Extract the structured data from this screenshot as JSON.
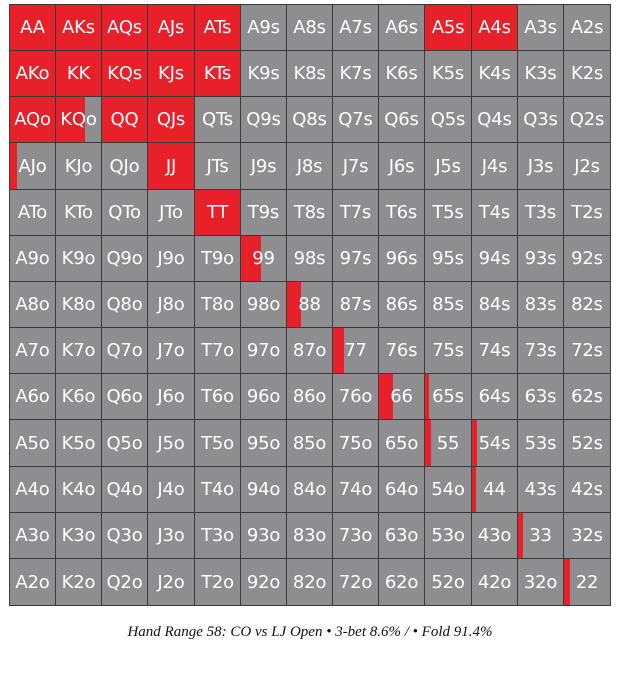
{
  "caption": "Hand Range 58: CO vs LJ Open • 3-bet 8.6% / • Fold 91.4%",
  "colors": {
    "raise": "#e8202a",
    "fold": "#8e8e90",
    "border": "#3a3a3a",
    "text": "#ffffff"
  },
  "chart_data": {
    "type": "heatmap",
    "title": "Hand Range 58: CO vs LJ Open • 3-bet 8.6% / • Fold 91.4%",
    "series": [
      {
        "name": "3-bet",
        "color": "#e8202a"
      },
      {
        "name": "Fold",
        "color": "#8e8e90"
      }
    ],
    "rows": [
      [
        "AA",
        "AKs",
        "AQs",
        "AJs",
        "ATs",
        "A9s",
        "A8s",
        "A7s",
        "A6s",
        "A5s",
        "A4s",
        "A3s",
        "A2s"
      ],
      [
        "AKo",
        "KK",
        "KQs",
        "KJs",
        "KTs",
        "K9s",
        "K8s",
        "K7s",
        "K6s",
        "K5s",
        "K4s",
        "K3s",
        "K2s"
      ],
      [
        "AQo",
        "KQo",
        "QQ",
        "QJs",
        "QTs",
        "Q9s",
        "Q8s",
        "Q7s",
        "Q6s",
        "Q5s",
        "Q4s",
        "Q3s",
        "Q2s"
      ],
      [
        "AJo",
        "KJo",
        "QJo",
        "JJ",
        "JTs",
        "J9s",
        "J8s",
        "J7s",
        "J6s",
        "J5s",
        "J4s",
        "J3s",
        "J2s"
      ],
      [
        "ATo",
        "KTo",
        "QTo",
        "JTo",
        "TT",
        "T9s",
        "T8s",
        "T7s",
        "T6s",
        "T5s",
        "T4s",
        "T3s",
        "T2s"
      ],
      [
        "A9o",
        "K9o",
        "Q9o",
        "J9o",
        "T9o",
        "99",
        "98s",
        "97s",
        "96s",
        "95s",
        "94s",
        "93s",
        "92s"
      ],
      [
        "A8o",
        "K8o",
        "Q8o",
        "J8o",
        "T8o",
        "98o",
        "88",
        "87s",
        "86s",
        "85s",
        "84s",
        "83s",
        "82s"
      ],
      [
        "A7o",
        "K7o",
        "Q7o",
        "J7o",
        "T7o",
        "97o",
        "87o",
        "77",
        "76s",
        "75s",
        "74s",
        "73s",
        "72s"
      ],
      [
        "A6o",
        "K6o",
        "Q6o",
        "J6o",
        "T6o",
        "96o",
        "86o",
        "76o",
        "66",
        "65s",
        "64s",
        "63s",
        "62s"
      ],
      [
        "A5o",
        "K5o",
        "Q5o",
        "J5o",
        "T5o",
        "95o",
        "85o",
        "75o",
        "65o",
        "55",
        "54s",
        "53s",
        "52s"
      ],
      [
        "A4o",
        "K4o",
        "Q4o",
        "J4o",
        "T4o",
        "94o",
        "84o",
        "74o",
        "64o",
        "54o",
        "44",
        "43s",
        "42s"
      ],
      [
        "A3o",
        "K3o",
        "Q3o",
        "J3o",
        "T3o",
        "93o",
        "83o",
        "73o",
        "63o",
        "53o",
        "43o",
        "33",
        "32s"
      ],
      [
        "A2o",
        "K2o",
        "Q2o",
        "J2o",
        "T2o",
        "92o",
        "82o",
        "72o",
        "62o",
        "52o",
        "42o",
        "32o",
        "22"
      ]
    ],
    "raise_freq": [
      [
        1,
        1,
        1,
        1,
        1,
        0,
        0,
        0,
        0,
        1,
        1,
        0,
        0
      ],
      [
        1,
        1,
        1,
        1,
        1,
        0,
        0,
        0,
        0,
        0,
        0,
        0,
        0
      ],
      [
        1,
        0.65,
        1,
        1,
        0,
        0,
        0,
        0,
        0,
        0,
        0,
        0,
        0
      ],
      [
        0.15,
        0,
        0,
        1,
        0,
        0,
        0,
        0,
        0,
        0,
        0,
        0,
        0
      ],
      [
        0,
        0,
        0,
        0,
        1,
        0,
        0,
        0,
        0,
        0,
        0,
        0,
        0
      ],
      [
        0,
        0,
        0,
        0,
        0,
        0.45,
        0,
        0,
        0,
        0,
        0,
        0,
        0
      ],
      [
        0,
        0,
        0,
        0,
        0,
        0,
        0.3,
        0,
        0,
        0,
        0,
        0,
        0
      ],
      [
        0,
        0,
        0,
        0,
        0,
        0,
        0,
        0.25,
        0,
        0,
        0,
        0,
        0
      ],
      [
        0,
        0,
        0,
        0,
        0,
        0,
        0,
        0,
        0.3,
        0.08,
        0,
        0,
        0
      ],
      [
        0,
        0,
        0,
        0,
        0,
        0,
        0,
        0,
        0,
        0.12,
        0.1,
        0,
        0
      ],
      [
        0,
        0,
        0,
        0,
        0,
        0,
        0,
        0,
        0,
        0,
        0.08,
        0,
        0
      ],
      [
        0,
        0,
        0,
        0,
        0,
        0,
        0,
        0,
        0,
        0,
        0,
        0.1,
        0
      ],
      [
        0,
        0,
        0,
        0,
        0,
        0,
        0,
        0,
        0,
        0,
        0,
        0,
        0.12
      ]
    ]
  }
}
